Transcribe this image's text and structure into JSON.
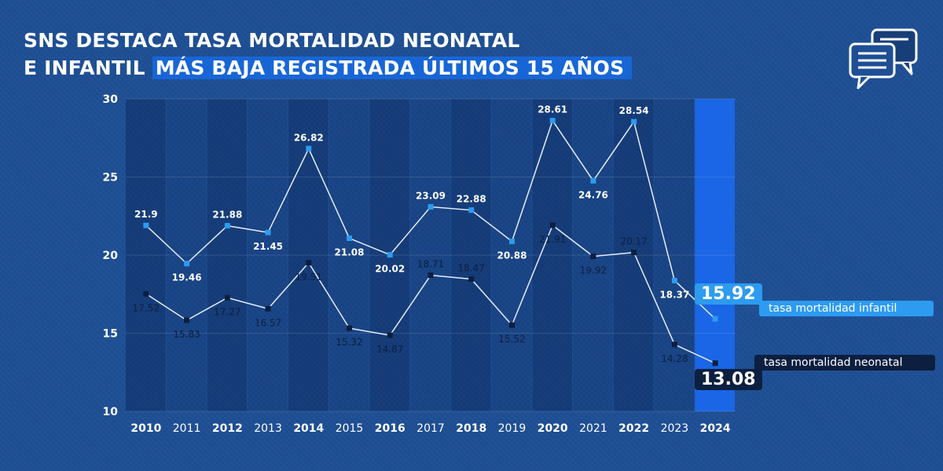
{
  "header": {
    "title_line1": "SNS DESTACA TASA MORTALIDAD NEONATAL",
    "title_line2_plain": "E INFANTIL",
    "title_line2_highlight": "MÁS BAJA REGISTRADA ÚLTIMOS 15 AÑOS"
  },
  "icons": {
    "top_right": "chat-bubbles-icon"
  },
  "colors": {
    "background": "#1e4f94",
    "infantil_marker": "#2d9bf0",
    "neonatal_marker": "#0c1f40",
    "line": "#e6edf7",
    "highlight_2024": "#1a66e6"
  },
  "chart_data": {
    "type": "line",
    "categories": [
      "2010",
      "2011",
      "2012",
      "2013",
      "2014",
      "2015",
      "2016",
      "2017",
      "2018",
      "2019",
      "2020",
      "2021",
      "2022",
      "2023",
      "2024"
    ],
    "bold_categories": [
      "2010",
      "2012",
      "2014",
      "2016",
      "2018",
      "2020",
      "2022",
      "2024"
    ],
    "highlight_category": "2024",
    "ylim": [
      10,
      30
    ],
    "yticks": [
      10,
      15,
      20,
      25,
      30
    ],
    "series": [
      {
        "name": "tasa mortalidad infantil",
        "values": [
          21.9,
          19.46,
          21.88,
          21.45,
          26.82,
          21.08,
          20.02,
          23.09,
          22.88,
          20.88,
          28.61,
          24.76,
          28.54,
          18.37,
          15.92
        ],
        "labels": [
          "21.9",
          "19.46",
          "21.88",
          "21.45",
          "26.82",
          "21.08",
          "20.02",
          "23.09",
          "22.88",
          "20.88",
          "28.61",
          "24.76",
          "28.54",
          "18.37",
          "15.92"
        ],
        "label_pos": [
          "above",
          "below",
          "above",
          "below",
          "above",
          "below",
          "below",
          "above",
          "above",
          "below",
          "above",
          "below",
          "above",
          "below",
          "badge"
        ]
      },
      {
        "name": "tasa mortalidad neonatal",
        "values": [
          17.52,
          15.83,
          17.27,
          16.57,
          19.51,
          15.32,
          14.87,
          18.71,
          18.47,
          15.52,
          21.91,
          19.92,
          20.17,
          14.28,
          13.08
        ],
        "labels": [
          "17.52",
          "15.83",
          "17.27",
          "16.57",
          "19.51",
          "15.32",
          "14.87",
          "18.71",
          "18.47",
          "15.52",
          "21.91",
          "19.92",
          "20.17",
          "14.28",
          "13.08"
        ],
        "label_pos": [
          "below",
          "below",
          "below",
          "below",
          "below",
          "below",
          "below",
          "above",
          "above",
          "below",
          "below",
          "below",
          "above",
          "below",
          "badge"
        ]
      }
    ]
  }
}
